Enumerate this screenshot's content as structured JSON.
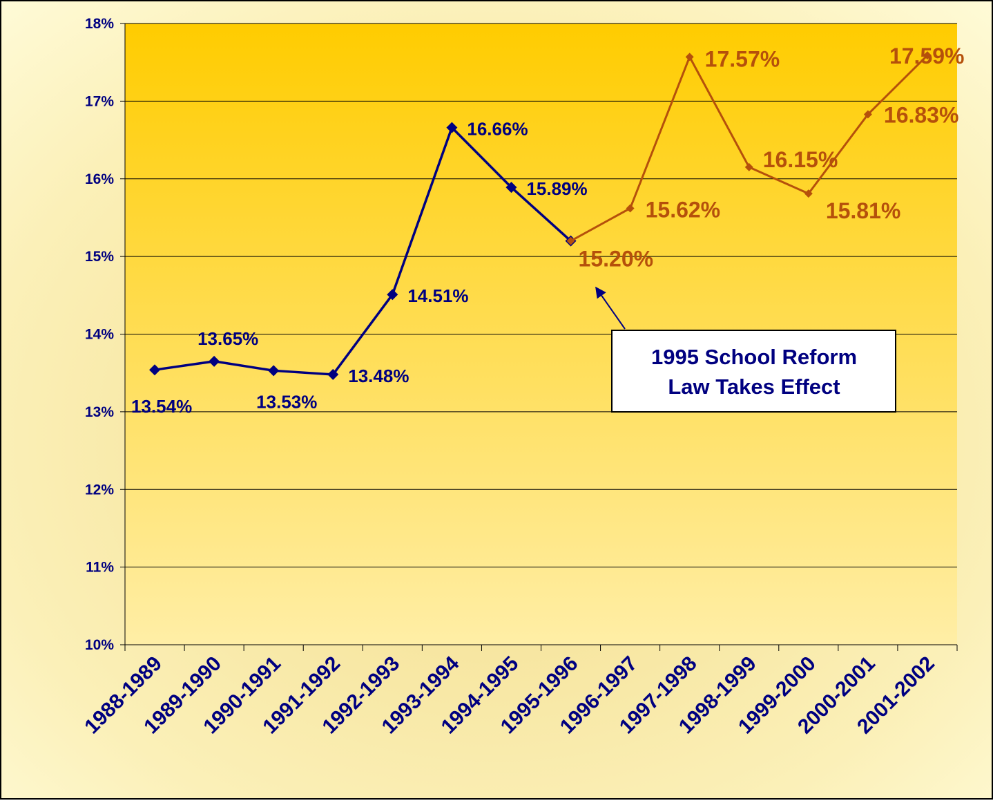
{
  "chart_data": {
    "type": "line",
    "categories": [
      "1988-1989",
      "1989-1990",
      "1990-1991",
      "1991-1992",
      "1992-1993",
      "1993-1994",
      "1994-1995",
      "1995-1996",
      "1996-1997",
      "1997-1998",
      "1998-1999",
      "1999-2000",
      "2000-2001",
      "2001-2002"
    ],
    "series": [
      {
        "color": "#000080",
        "values": [
          13.54,
          13.65,
          13.53,
          13.48,
          14.51,
          16.66,
          15.89,
          15.2,
          null,
          null,
          null,
          null,
          null,
          null
        ],
        "value_labels": [
          "13.54%",
          "13.65%",
          "13.53%",
          "13.48%",
          "14.51%",
          "16.66%",
          "15.89%",
          null,
          null,
          null,
          null,
          null,
          null,
          null
        ]
      },
      {
        "color": "#b5500b",
        "values": [
          null,
          null,
          null,
          null,
          null,
          null,
          null,
          15.2,
          15.62,
          17.57,
          16.15,
          15.81,
          16.83,
          17.59
        ],
        "value_labels": [
          null,
          null,
          null,
          null,
          null,
          null,
          null,
          "15.20%",
          "15.62%",
          "17.57%",
          "16.15%",
          "15.81%",
          "16.83%",
          "17.59%"
        ]
      }
    ],
    "ylim": [
      10,
      18
    ],
    "yticks": [
      {
        "value": 10,
        "label": "10%"
      },
      {
        "value": 11,
        "label": "11%"
      },
      {
        "value": 12,
        "label": "12%"
      },
      {
        "value": 13,
        "label": "13%"
      },
      {
        "value": 14,
        "label": "14%"
      },
      {
        "value": 15,
        "label": "15%"
      },
      {
        "value": 16,
        "label": "16%"
      },
      {
        "value": 17,
        "label": "17%"
      },
      {
        "value": 18,
        "label": "18%"
      }
    ],
    "grid": true,
    "annotation": [
      "1995 School Reform",
      "Law Takes Effect"
    ]
  }
}
